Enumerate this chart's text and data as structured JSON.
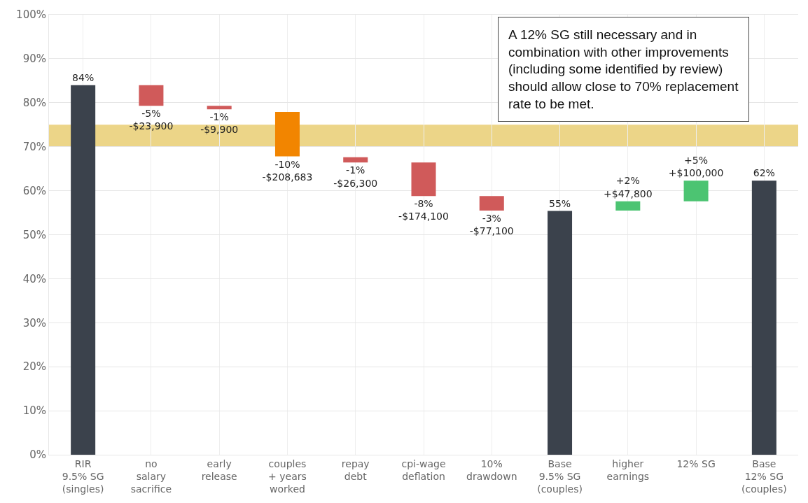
{
  "chart_data": {
    "type": "bar",
    "categories": [
      "RIR\n9.5% SG\n(singles)",
      "no\nsalary\nsacrifice",
      "early\nrelease",
      "couples\n+ years\nworked",
      "repay\ndebt",
      "cpi-wage\ndeflation",
      "10%\ndrawdown",
      "Base\n9.5% SG\n(couples)",
      "higher\nearnings",
      "12% SG",
      "Base\n12% SG\n(couples)"
    ],
    "values": [
      84,
      -4.7,
      -0.8,
      -10.1,
      -1.2,
      -7.6,
      -3.3,
      55.4,
      2.1,
      4.7,
      62.3
    ],
    "base": [
      0,
      84,
      79.3,
      77.9,
      67.6,
      66.4,
      58.8,
      0,
      55.5,
      57.6,
      0
    ],
    "colors": [
      "#3b424c",
      "#d05a5a",
      "#d05a5a",
      "#f28500",
      "#d05a5a",
      "#d05a5a",
      "#d05a5a",
      "#3b424c",
      "#4cc472",
      "#4cc472",
      "#3b424c"
    ],
    "value_labels": [
      "84%",
      "-5%\n-$23,900",
      "-1%\n-$9,900",
      "-10%\n-$208,683",
      "-1%\n-$26,300",
      "-8%\n-$174,100",
      "-3%\n-$77,100",
      "55%",
      "+2%\n+$47,800",
      "+5%\n+$100,000",
      "62%"
    ],
    "ylim": [
      0,
      100
    ],
    "yticks": [
      {
        "value": 0,
        "label": "0%"
      },
      {
        "value": 10,
        "label": "10%"
      },
      {
        "value": 20,
        "label": "20%"
      },
      {
        "value": 30,
        "label": "30%"
      },
      {
        "value": 40,
        "label": "40%"
      },
      {
        "value": 50,
        "label": "50%"
      },
      {
        "value": 60,
        "label": "60%"
      },
      {
        "value": 70,
        "label": "70%"
      },
      {
        "value": 80,
        "label": "80%"
      },
      {
        "value": 90,
        "label": "90%"
      },
      {
        "value": 100,
        "label": "100%"
      }
    ],
    "bands": [
      {
        "axis": "y",
        "from": 70,
        "to": 75,
        "color": "#ecd588"
      }
    ],
    "annotations": [
      "A 12% SG still necessary and in\ncombination with other improvements\n(including some identified by review)\nshould allow close to 70% replacement\nrate to be met."
    ],
    "grid": true
  }
}
